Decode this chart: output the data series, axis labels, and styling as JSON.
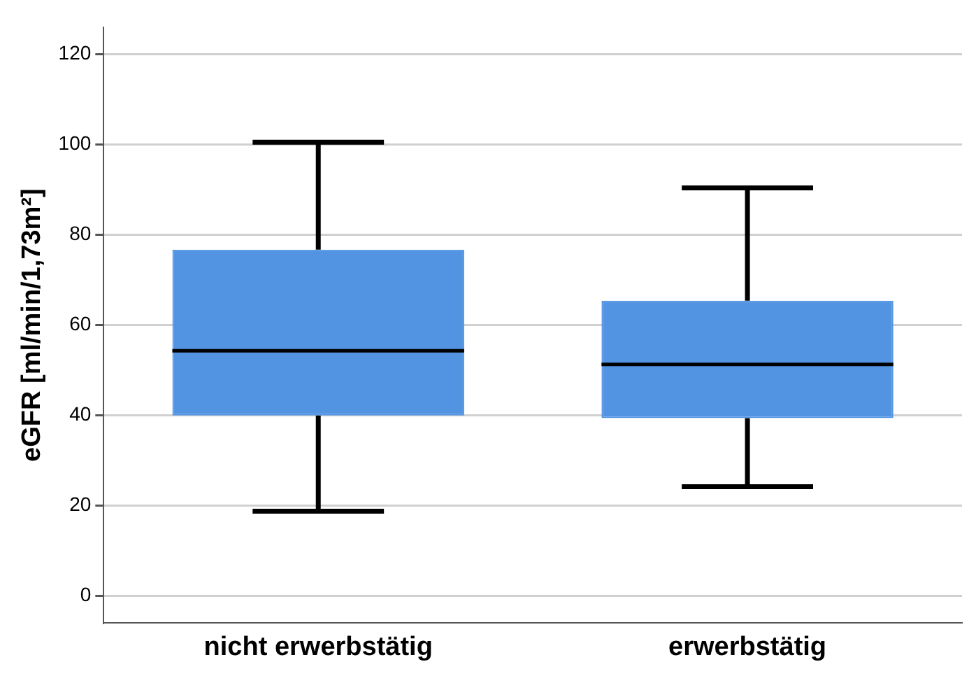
{
  "chart_data": {
    "type": "box",
    "ylabel": "eGFR [ml/min/1,73m²]",
    "categories": [
      "nicht erwerbstätig",
      "erwerbstätig"
    ],
    "boxes": [
      {
        "low": 18.8,
        "q1": 40,
        "median": 54.3,
        "q3": 76.7,
        "high": 100.5
      },
      {
        "low": 24.2,
        "q1": 39.4,
        "median": 51.3,
        "q3": 65.4,
        "high": 90.4
      }
    ],
    "color": "#5294e2",
    "ylim": [
      -6,
      126
    ],
    "yticks": [
      0,
      20,
      40,
      60,
      80,
      100,
      120
    ],
    "grid": "y"
  }
}
